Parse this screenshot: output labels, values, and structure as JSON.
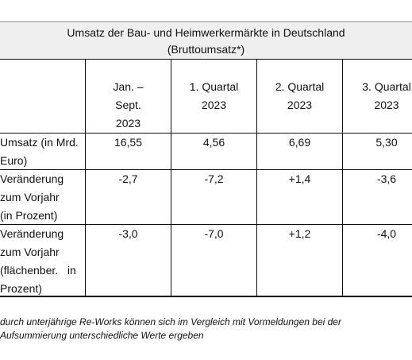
{
  "table": {
    "title_line1": "Umsatz der Bau- und Heimwerkermärkte in Deutschland",
    "title_line2": "(Bruttoumsatz*)",
    "columns": [
      {
        "label_lines": [
          "Jan. –",
          "Sept.",
          "2023"
        ]
      },
      {
        "label_lines": [
          "1. Quartal",
          "2023"
        ]
      },
      {
        "label_lines": [
          "2. Quartal",
          "2023"
        ]
      },
      {
        "label_lines": [
          "3. Quartal",
          "2023"
        ]
      }
    ],
    "rows": [
      {
        "label_lines": [
          "Umsatz (in Mrd.",
          "Euro)"
        ],
        "values": [
          "16,55",
          "4,56",
          "6,69",
          "5,30"
        ]
      },
      {
        "label_lines": [
          "Veränderung",
          "zum Vorjahr",
          "(in Prozent)"
        ],
        "values": [
          "-2,7",
          "-7,2",
          "+1,4",
          "-3,6"
        ]
      },
      {
        "label_lines": [
          "Veränderung",
          "zum Vorjahr",
          "(flächenber.   in",
          "Prozent)"
        ],
        "values": [
          "-3,0",
          "-7,0",
          "+1,2",
          "-4,0"
        ]
      }
    ]
  },
  "footnote": {
    "line1": "durch unterjährige Re-Works können sich im Vergleich mit Vormeldungen bei der",
    "line2": "Aufsummierung unterschiedliche Werte ergeben"
  }
}
